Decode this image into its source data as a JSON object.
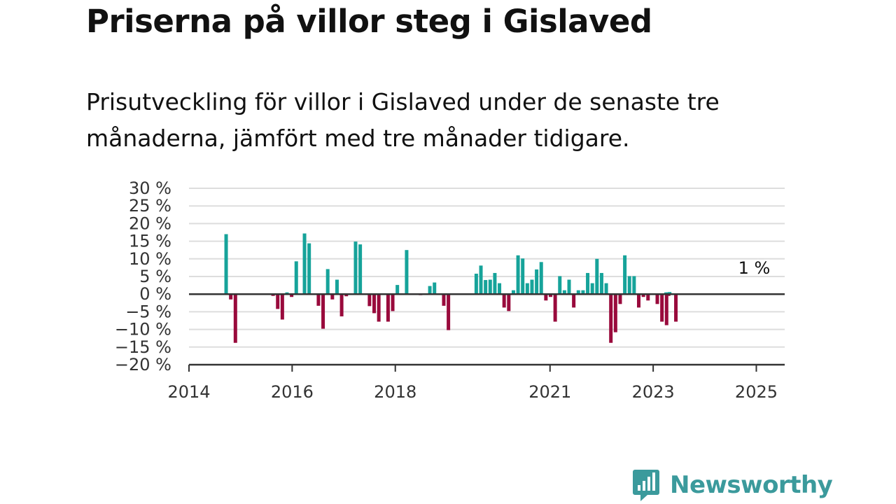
{
  "title": "Priserna på villor steg i Gislaved",
  "subtitle": "Prisutveckling för villor i Gislaved under de senaste tre månaderna, jämfört med tre månader tidigare.",
  "brand": {
    "name": "Newsworthy",
    "icon": "newsworthy-logo-icon",
    "color": "#3b9a9c"
  },
  "colors": {
    "positive": "#16a39a",
    "negative": "#990a3c",
    "grid": "#dddddd",
    "axis": "#333333"
  },
  "chart_data": {
    "type": "bar",
    "ylim": [
      -20,
      30
    ],
    "xlim": [
      2014.0,
      2025.55
    ],
    "grid": true,
    "yticks": [
      {
        "value": 30,
        "label": "30 %"
      },
      {
        "value": 25,
        "label": "25 %"
      },
      {
        "value": 20,
        "label": "20 %"
      },
      {
        "value": 15,
        "label": "15 %"
      },
      {
        "value": 10,
        "label": "10 %"
      },
      {
        "value": 5,
        "label": "5 %"
      },
      {
        "value": 0,
        "label": "0 %"
      },
      {
        "value": -5,
        "label": "−5 %"
      },
      {
        "value": -10,
        "label": "−10 %"
      },
      {
        "value": -15,
        "label": "−15 %"
      },
      {
        "value": -20,
        "label": "−20 %"
      }
    ],
    "xticks": [
      {
        "value": 2014,
        "label": "2014"
      },
      {
        "value": 2016,
        "label": "2016"
      },
      {
        "value": 2018,
        "label": "2018"
      },
      {
        "value": 2021,
        "label": "2021"
      },
      {
        "value": 2023,
        "label": "2023"
      },
      {
        "value": 2025,
        "label": "2025"
      }
    ],
    "annotation": {
      "label": "1 %",
      "x": 2025.0,
      "y": 1
    },
    "points": [
      {
        "x": 2014.72,
        "y": 17
      },
      {
        "x": 2014.81,
        "y": -1.5
      },
      {
        "x": 2014.9,
        "y": -13.8
      },
      {
        "x": 2015.63,
        "y": -0.5
      },
      {
        "x": 2015.72,
        "y": -4.2
      },
      {
        "x": 2015.81,
        "y": -7.2
      },
      {
        "x": 2015.9,
        "y": 0.5
      },
      {
        "x": 2015.99,
        "y": -0.8
      },
      {
        "x": 2016.08,
        "y": 9.3
      },
      {
        "x": 2016.24,
        "y": 17.2
      },
      {
        "x": 2016.33,
        "y": 14.4
      },
      {
        "x": 2016.51,
        "y": -3.3
      },
      {
        "x": 2016.6,
        "y": -9.8
      },
      {
        "x": 2016.69,
        "y": 7.1
      },
      {
        "x": 2016.78,
        "y": -1.5
      },
      {
        "x": 2016.87,
        "y": 4.1
      },
      {
        "x": 2016.96,
        "y": -6.3
      },
      {
        "x": 2017.05,
        "y": -0.6
      },
      {
        "x": 2017.23,
        "y": 14.9
      },
      {
        "x": 2017.32,
        "y": 14.1
      },
      {
        "x": 2017.5,
        "y": -3.4
      },
      {
        "x": 2017.59,
        "y": -5.4
      },
      {
        "x": 2017.68,
        "y": -7.8
      },
      {
        "x": 2017.86,
        "y": -7.8
      },
      {
        "x": 2017.95,
        "y": -4.8
      },
      {
        "x": 2018.04,
        "y": 2.6
      },
      {
        "x": 2018.22,
        "y": 12.5
      },
      {
        "x": 2018.49,
        "y": -0.3
      },
      {
        "x": 2018.67,
        "y": 2.3
      },
      {
        "x": 2018.76,
        "y": 3.3
      },
      {
        "x": 2018.94,
        "y": -3.3
      },
      {
        "x": 2019.03,
        "y": -10.2
      },
      {
        "x": 2019.57,
        "y": 5.8
      },
      {
        "x": 2019.66,
        "y": 8.1
      },
      {
        "x": 2019.75,
        "y": 4
      },
      {
        "x": 2019.84,
        "y": 4.1
      },
      {
        "x": 2019.93,
        "y": 6
      },
      {
        "x": 2020.02,
        "y": 3.1
      },
      {
        "x": 2020.11,
        "y": -3.8
      },
      {
        "x": 2020.2,
        "y": -4.8
      },
      {
        "x": 2020.29,
        "y": 1.1
      },
      {
        "x": 2020.38,
        "y": 11
      },
      {
        "x": 2020.47,
        "y": 10.1
      },
      {
        "x": 2020.56,
        "y": 3.1
      },
      {
        "x": 2020.65,
        "y": 4.1
      },
      {
        "x": 2020.74,
        "y": 7
      },
      {
        "x": 2020.83,
        "y": 9.1
      },
      {
        "x": 2020.92,
        "y": -1.8
      },
      {
        "x": 2021.01,
        "y": -0.8
      },
      {
        "x": 2021.1,
        "y": -7.8
      },
      {
        "x": 2021.19,
        "y": 5.1
      },
      {
        "x": 2021.28,
        "y": 1.1
      },
      {
        "x": 2021.37,
        "y": 4.1
      },
      {
        "x": 2021.46,
        "y": -3.8
      },
      {
        "x": 2021.55,
        "y": 1.1
      },
      {
        "x": 2021.64,
        "y": 1.1
      },
      {
        "x": 2021.73,
        "y": 6
      },
      {
        "x": 2021.82,
        "y": 3.1
      },
      {
        "x": 2021.91,
        "y": 10
      },
      {
        "x": 2022.0,
        "y": 6
      },
      {
        "x": 2022.09,
        "y": 3.1
      },
      {
        "x": 2022.18,
        "y": -13.8
      },
      {
        "x": 2022.27,
        "y": -10.8
      },
      {
        "x": 2022.36,
        "y": -2.8
      },
      {
        "x": 2022.45,
        "y": 11
      },
      {
        "x": 2022.54,
        "y": 5.1
      },
      {
        "x": 2022.63,
        "y": 5.1
      },
      {
        "x": 2022.72,
        "y": -3.8
      },
      {
        "x": 2022.81,
        "y": -0.8
      },
      {
        "x": 2022.9,
        "y": -1.8
      },
      {
        "x": 2023.08,
        "y": -2.8
      },
      {
        "x": 2023.17,
        "y": -7.8
      },
      {
        "x": 2023.26,
        "y": -8.8
      },
      {
        "x": 2023.44,
        "y": -7.8
      },
      {
        "x": 2023.3,
        "y": -0.5
      },
      {
        "x": 2023.32,
        "y": 0.6
      },
      {
        "x": 2023.31,
        "y": 0.5
      },
      {
        "x": 2023.3,
        "y": 0.5
      },
      {
        "x": 2023.28,
        "y": 0.5
      },
      {
        "x": 2023.26,
        "y": 0.5
      },
      {
        "x": 2023.25,
        "y": 0.5
      },
      {
        "x": 2023.3,
        "y": 0.4
      },
      {
        "x": 2023.3,
        "y": 0.3
      },
      {
        "x": 2023.3,
        "y": 0.3
      },
      {
        "x": 2023.31,
        "y": 0.3
      },
      {
        "x": 2023.31,
        "y": 0.3
      },
      {
        "x": 2023.31,
        "y": 0.3
      },
      {
        "x": 2023.3,
        "y": 0.3
      },
      {
        "x": 2023.3,
        "y": 0.3
      },
      {
        "x": 2023.31,
        "y": 0.3
      },
      {
        "x": 2023.3,
        "y": 0.3
      },
      {
        "x": 2023.29,
        "y": 0.3
      },
      {
        "x": 2023.29,
        "y": 0.3
      },
      {
        "x": 2023.29,
        "y": 0.3
      },
      {
        "x": 2023.28,
        "y": 0.3
      },
      {
        "x": 2023.28,
        "y": 0.3
      },
      {
        "x": 2023.28,
        "y": 0.3
      },
      {
        "x": 2023.29,
        "y": 0.3
      },
      {
        "x": 2023.3,
        "y": 0.3
      },
      {
        "x": 2023.29,
        "y": 0.3
      },
      {
        "x": 2023.28,
        "y": 0.3
      },
      {
        "x": 2023.28,
        "y": 0.3
      },
      {
        "x": 2023.28,
        "y": 0.3
      },
      {
        "x": 2023.28,
        "y": 0.3
      },
      {
        "x": 2023.28,
        "y": 0.3
      },
      {
        "x": 2023.28,
        "y": 0.3
      },
      {
        "x": 2023.28,
        "y": 0.3
      },
      {
        "x": 2023.28,
        "y": 0.3
      },
      {
        "x": 2023.28,
        "y": 0.3
      },
      {
        "x": 2023.28,
        "y": 0.3
      },
      {
        "x": 2023.28,
        "y": 0.3
      },
      {
        "x": 2023.28,
        "y": 0.3
      },
      {
        "x": 2023.28,
        "y": 0.3
      },
      {
        "x": 2023.28,
        "y": 0.3
      },
      {
        "x": 2023.28,
        "y": 0.3
      },
      {
        "x": 2023.28,
        "y": 0.3
      },
      {
        "x": 2023.28,
        "y": 0.3
      },
      {
        "x": 2023.28,
        "y": 0.3
      },
      {
        "x": 2023.28,
        "y": 0.3
      },
      {
        "x": 2023.28,
        "y": 0.3
      },
      {
        "x": 2023.28,
        "y": 0.3
      },
      {
        "x": 2023.28,
        "y": 0.3
      },
      {
        "x": 2023.28,
        "y": 0.3
      }
    ]
  }
}
